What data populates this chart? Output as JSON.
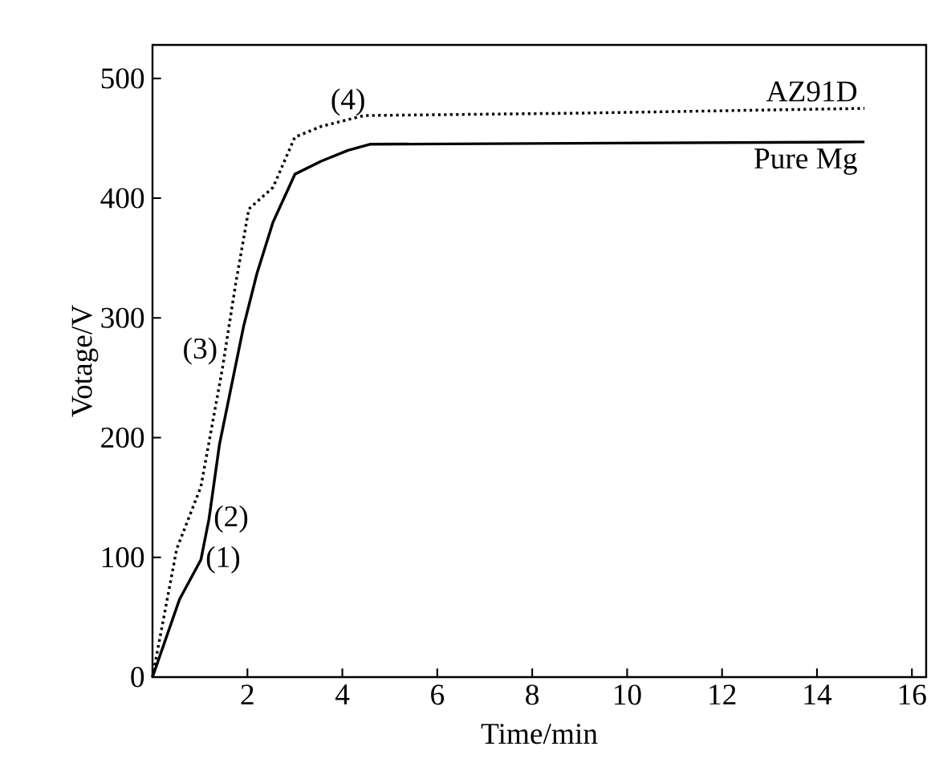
{
  "chart_data": {
    "type": "line",
    "xlabel": "Time/min",
    "ylabel": "Votage/V",
    "xlim": [
      0,
      16.3
    ],
    "ylim": [
      0,
      528
    ],
    "xticks": [
      {
        "value": 0,
        "label": null
      },
      2,
      4,
      6,
      8,
      10,
      12,
      14,
      16
    ],
    "yticks": [
      0,
      100,
      200,
      300,
      400,
      500
    ],
    "grid": false,
    "series": [
      {
        "name": "AZ91D",
        "color": "#000000",
        "line_style": "dotted",
        "x": [
          0,
          0.51,
          1.02,
          1.47,
          1.75,
          2.03,
          2.54,
          3.0,
          3.56,
          4.46,
          9.0,
          15.0
        ],
        "values": [
          0,
          107,
          159,
          257,
          328,
          391,
          409,
          451,
          460,
          469,
          471,
          475
        ]
      },
      {
        "name": "Pure Mg",
        "color": "#000000",
        "line_style": "solid",
        "x": [
          0,
          0.57,
          1.02,
          1.19,
          1.41,
          1.92,
          2.2,
          2.54,
          3.0,
          3.56,
          4.12,
          4.58,
          15.0
        ],
        "values": [
          0,
          65,
          98,
          132,
          194,
          293,
          337,
          380,
          420,
          431,
          440,
          445,
          447
        ]
      }
    ],
    "annotations": [
      {
        "text": "(1)",
        "x": 1.02,
        "y": 98
      },
      {
        "text": "(2)",
        "x": 1.19,
        "y": 132
      },
      {
        "text": "(3)",
        "x": 1.47,
        "y": 257
      },
      {
        "text": "(4)",
        "x": 4.12,
        "y": 465
      }
    ]
  }
}
